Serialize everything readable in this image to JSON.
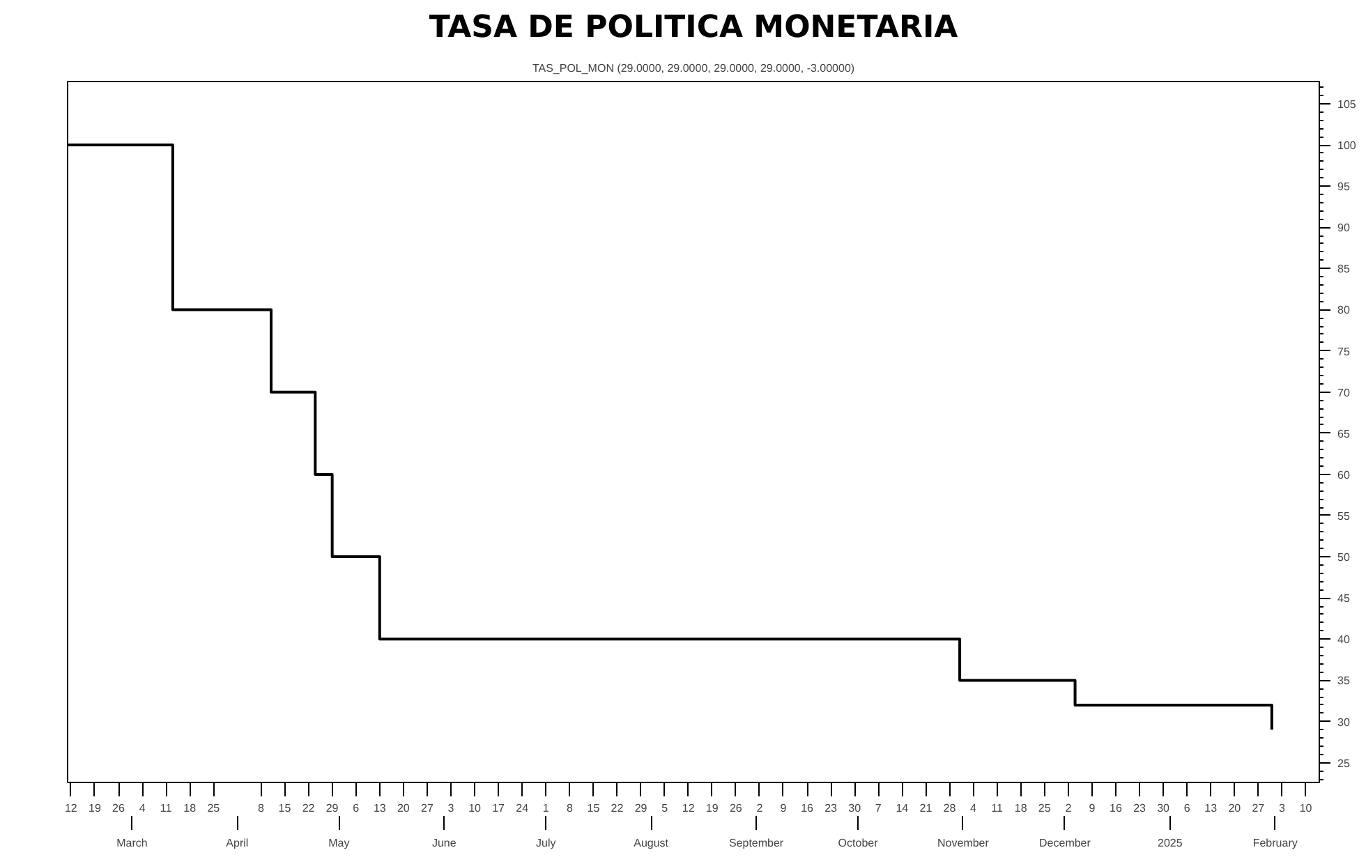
{
  "chart_data": {
    "type": "step",
    "title": "TASA DE POLITICA MONETARIA",
    "subtitle": "TAS_POL_MON (29.0000, 29.0000, 29.0000, 29.0000, -3.00000)",
    "x": [
      "2024-02-11",
      "2024-03-13",
      "2024-04-11",
      "2024-04-24",
      "2024-04-29",
      "2024-05-13",
      "2024-10-31",
      "2024-12-04",
      "2025-01-30",
      "2025-01-31"
    ],
    "values": [
      100,
      80,
      70,
      60,
      50,
      40,
      35,
      32,
      32,
      29
    ],
    "color": "#000000",
    "line_style": "solid",
    "marker": "none",
    "grid": false,
    "xlim": [
      "2024-02-11",
      "2025-02-14"
    ],
    "ylim": [
      22.6,
      107.7
    ],
    "yticks": [
      25,
      30,
      35,
      40,
      45,
      50,
      55,
      60,
      65,
      70,
      75,
      80,
      85,
      90,
      95,
      100,
      105
    ],
    "xticks": [
      {
        "value": "2024-02-12",
        "label": "12"
      },
      {
        "value": "2024-02-19",
        "label": "19"
      },
      {
        "value": "2024-02-26",
        "label": "26"
      },
      {
        "value": "2024-03-04",
        "label": "4"
      },
      {
        "value": "2024-03-11",
        "label": "11"
      },
      {
        "value": "2024-03-18",
        "label": "18"
      },
      {
        "value": "2024-03-25",
        "label": "25"
      },
      {
        "value": "2024-04-08",
        "label": "8"
      },
      {
        "value": "2024-04-15",
        "label": "15"
      },
      {
        "value": "2024-04-22",
        "label": "22"
      },
      {
        "value": "2024-04-29",
        "label": "29"
      },
      {
        "value": "2024-05-06",
        "label": "6"
      },
      {
        "value": "2024-05-13",
        "label": "13"
      },
      {
        "value": "2024-05-20",
        "label": "20"
      },
      {
        "value": "2024-05-27",
        "label": "27"
      },
      {
        "value": "2024-06-03",
        "label": "3"
      },
      {
        "value": "2024-06-10",
        "label": "10"
      },
      {
        "value": "2024-06-17",
        "label": "17"
      },
      {
        "value": "2024-06-24",
        "label": "24"
      },
      {
        "value": "2024-07-01",
        "label": "1"
      },
      {
        "value": "2024-07-08",
        "label": "8"
      },
      {
        "value": "2024-07-15",
        "label": "15"
      },
      {
        "value": "2024-07-22",
        "label": "22"
      },
      {
        "value": "2024-07-29",
        "label": "29"
      },
      {
        "value": "2024-08-05",
        "label": "5"
      },
      {
        "value": "2024-08-12",
        "label": "12"
      },
      {
        "value": "2024-08-19",
        "label": "19"
      },
      {
        "value": "2024-08-26",
        "label": "26"
      },
      {
        "value": "2024-09-02",
        "label": "2"
      },
      {
        "value": "2024-09-09",
        "label": "9"
      },
      {
        "value": "2024-09-16",
        "label": "16"
      },
      {
        "value": "2024-09-23",
        "label": "23"
      },
      {
        "value": "2024-09-30",
        "label": "30"
      },
      {
        "value": "2024-10-07",
        "label": "7"
      },
      {
        "value": "2024-10-14",
        "label": "14"
      },
      {
        "value": "2024-10-21",
        "label": "21"
      },
      {
        "value": "2024-10-28",
        "label": "28"
      },
      {
        "value": "2024-11-04",
        "label": "4"
      },
      {
        "value": "2024-11-11",
        "label": "11"
      },
      {
        "value": "2024-11-18",
        "label": "18"
      },
      {
        "value": "2024-11-25",
        "label": "25"
      },
      {
        "value": "2024-12-02",
        "label": "2"
      },
      {
        "value": "2024-12-09",
        "label": "9"
      },
      {
        "value": "2024-12-16",
        "label": "16"
      },
      {
        "value": "2024-12-23",
        "label": "23"
      },
      {
        "value": "2024-12-30",
        "label": "30"
      },
      {
        "value": "2025-01-06",
        "label": "6"
      },
      {
        "value": "2025-01-13",
        "label": "13"
      },
      {
        "value": "2025-01-20",
        "label": "20"
      },
      {
        "value": "2025-01-27",
        "label": "27"
      },
      {
        "value": "2025-02-03",
        "label": "3"
      },
      {
        "value": "2025-02-10",
        "label": "10"
      }
    ],
    "x2lim": [
      "2024-02-11",
      "2025-02-14"
    ],
    "x2ticks": [
      {
        "value": "2024-03-01",
        "label": "March"
      },
      {
        "value": "2024-04-01",
        "label": "April"
      },
      {
        "value": "2024-05-01",
        "label": "May"
      },
      {
        "value": "2024-06-01",
        "label": "June"
      },
      {
        "value": "2024-07-01",
        "label": "July"
      },
      {
        "value": "2024-08-01",
        "label": "August"
      },
      {
        "value": "2024-09-01",
        "label": "September"
      },
      {
        "value": "2024-10-01",
        "label": "October"
      },
      {
        "value": "2024-11-01",
        "label": "November"
      },
      {
        "value": "2024-12-01",
        "label": "December"
      },
      {
        "value": "2025-01-01",
        "label": "2025"
      },
      {
        "value": "2025-02-01",
        "label": "February"
      }
    ]
  }
}
